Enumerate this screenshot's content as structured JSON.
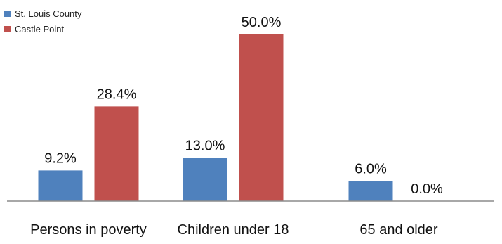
{
  "chart_data": {
    "type": "bar",
    "categories": [
      "Persons in poverty",
      "Children under 18",
      "65 and older"
    ],
    "series": [
      {
        "name": "St. Louis County",
        "values": [
          9.2,
          13.0,
          6.0
        ],
        "labels": [
          "9.2%",
          "13.0%",
          "6.0%"
        ],
        "color": "#4f81bd"
      },
      {
        "name": "Castle Point",
        "values": [
          28.4,
          50.0,
          0.0
        ],
        "labels": [
          "28.4%",
          "50.0%",
          "0.0%"
        ],
        "color": "#c0504d"
      }
    ],
    "ylim": [
      0,
      50
    ],
    "grid": false,
    "legend": "top-left",
    "xlabel": "",
    "ylabel": ""
  }
}
